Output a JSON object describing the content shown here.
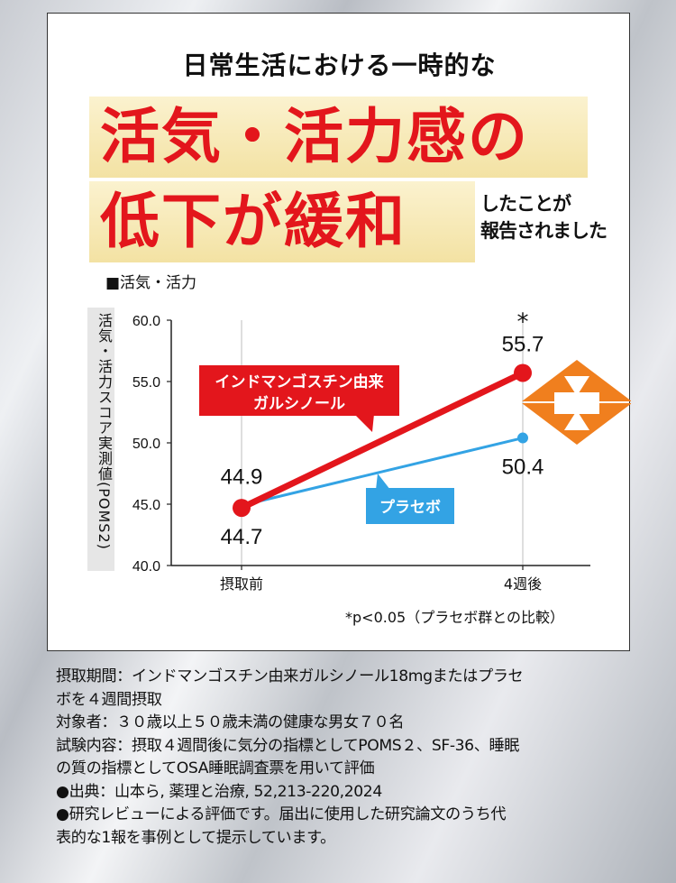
{
  "header": {
    "subtitle": "日常生活における一時的な",
    "headline_line1": "活気・活力感の",
    "headline_line2": "低下が緩和",
    "side_note_line1": "したことが",
    "side_note_line2": "報告されました"
  },
  "chart_data": {
    "type": "line",
    "title": "■活気・活力",
    "ylabel": "活気・活力スコア実測値(POMS2)",
    "categories": [
      "摂取前",
      "4週後"
    ],
    "ylim": [
      40.0,
      60.0
    ],
    "yticks": [
      "40.0",
      "45.0",
      "50.0",
      "55.0",
      "60.0"
    ],
    "series": [
      {
        "name": "インドマンゴスチン由来ガルシノール",
        "values": [
          44.7,
          55.7
        ],
        "labels": [
          "44.7",
          "55.7"
        ],
        "color": "#e3161c"
      },
      {
        "name": "プラセボ",
        "values": [
          44.9,
          50.4
        ],
        "labels": [
          "44.9",
          "50.4"
        ],
        "color": "#33a3e4"
      }
    ],
    "callout_red_line1": "インドマンゴスチン由来",
    "callout_red_line2": "ガルシノール",
    "callout_blue": "プラセボ",
    "significance_mark": "*",
    "note": "*p<0.05（プラセボ群との比較）",
    "arrow_color": "#f07f1e"
  },
  "footer": {
    "lines": [
      "摂取期間：インドマンゴスチン由来ガルシノール18mgまたはプラセ",
      "ボを４週間摂取",
      "対象者：３０歳以上５０歳未満の健康な男女７０名",
      "試験内容：摂取４週間後に気分の指標としてPOMS２、SF-36、睡眠",
      "の質の指標としてOSA睡眠調査票を用いて評価",
      "●出典：山本ら, 薬理と治療, 52,213-220,2024",
      "●研究レビューによる評価です。届出に使用した研究論文のうち代",
      "表的な1報を事例として提示しています。"
    ]
  }
}
